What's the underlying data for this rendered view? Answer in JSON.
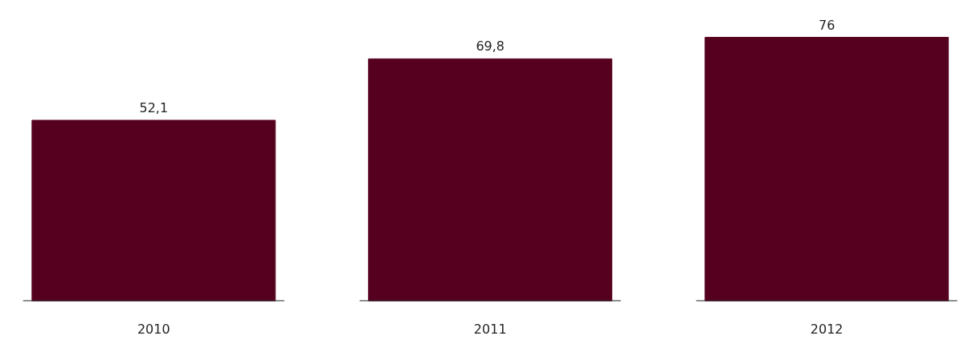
{
  "chart_data": {
    "type": "bar",
    "categories": [
      "2010",
      "2011",
      "2012"
    ],
    "values": [
      52.1,
      69.8,
      76
    ],
    "color": "#560020",
    "value_labels": [
      "52,1",
      "69,8",
      "76"
    ],
    "grid": false
  }
}
